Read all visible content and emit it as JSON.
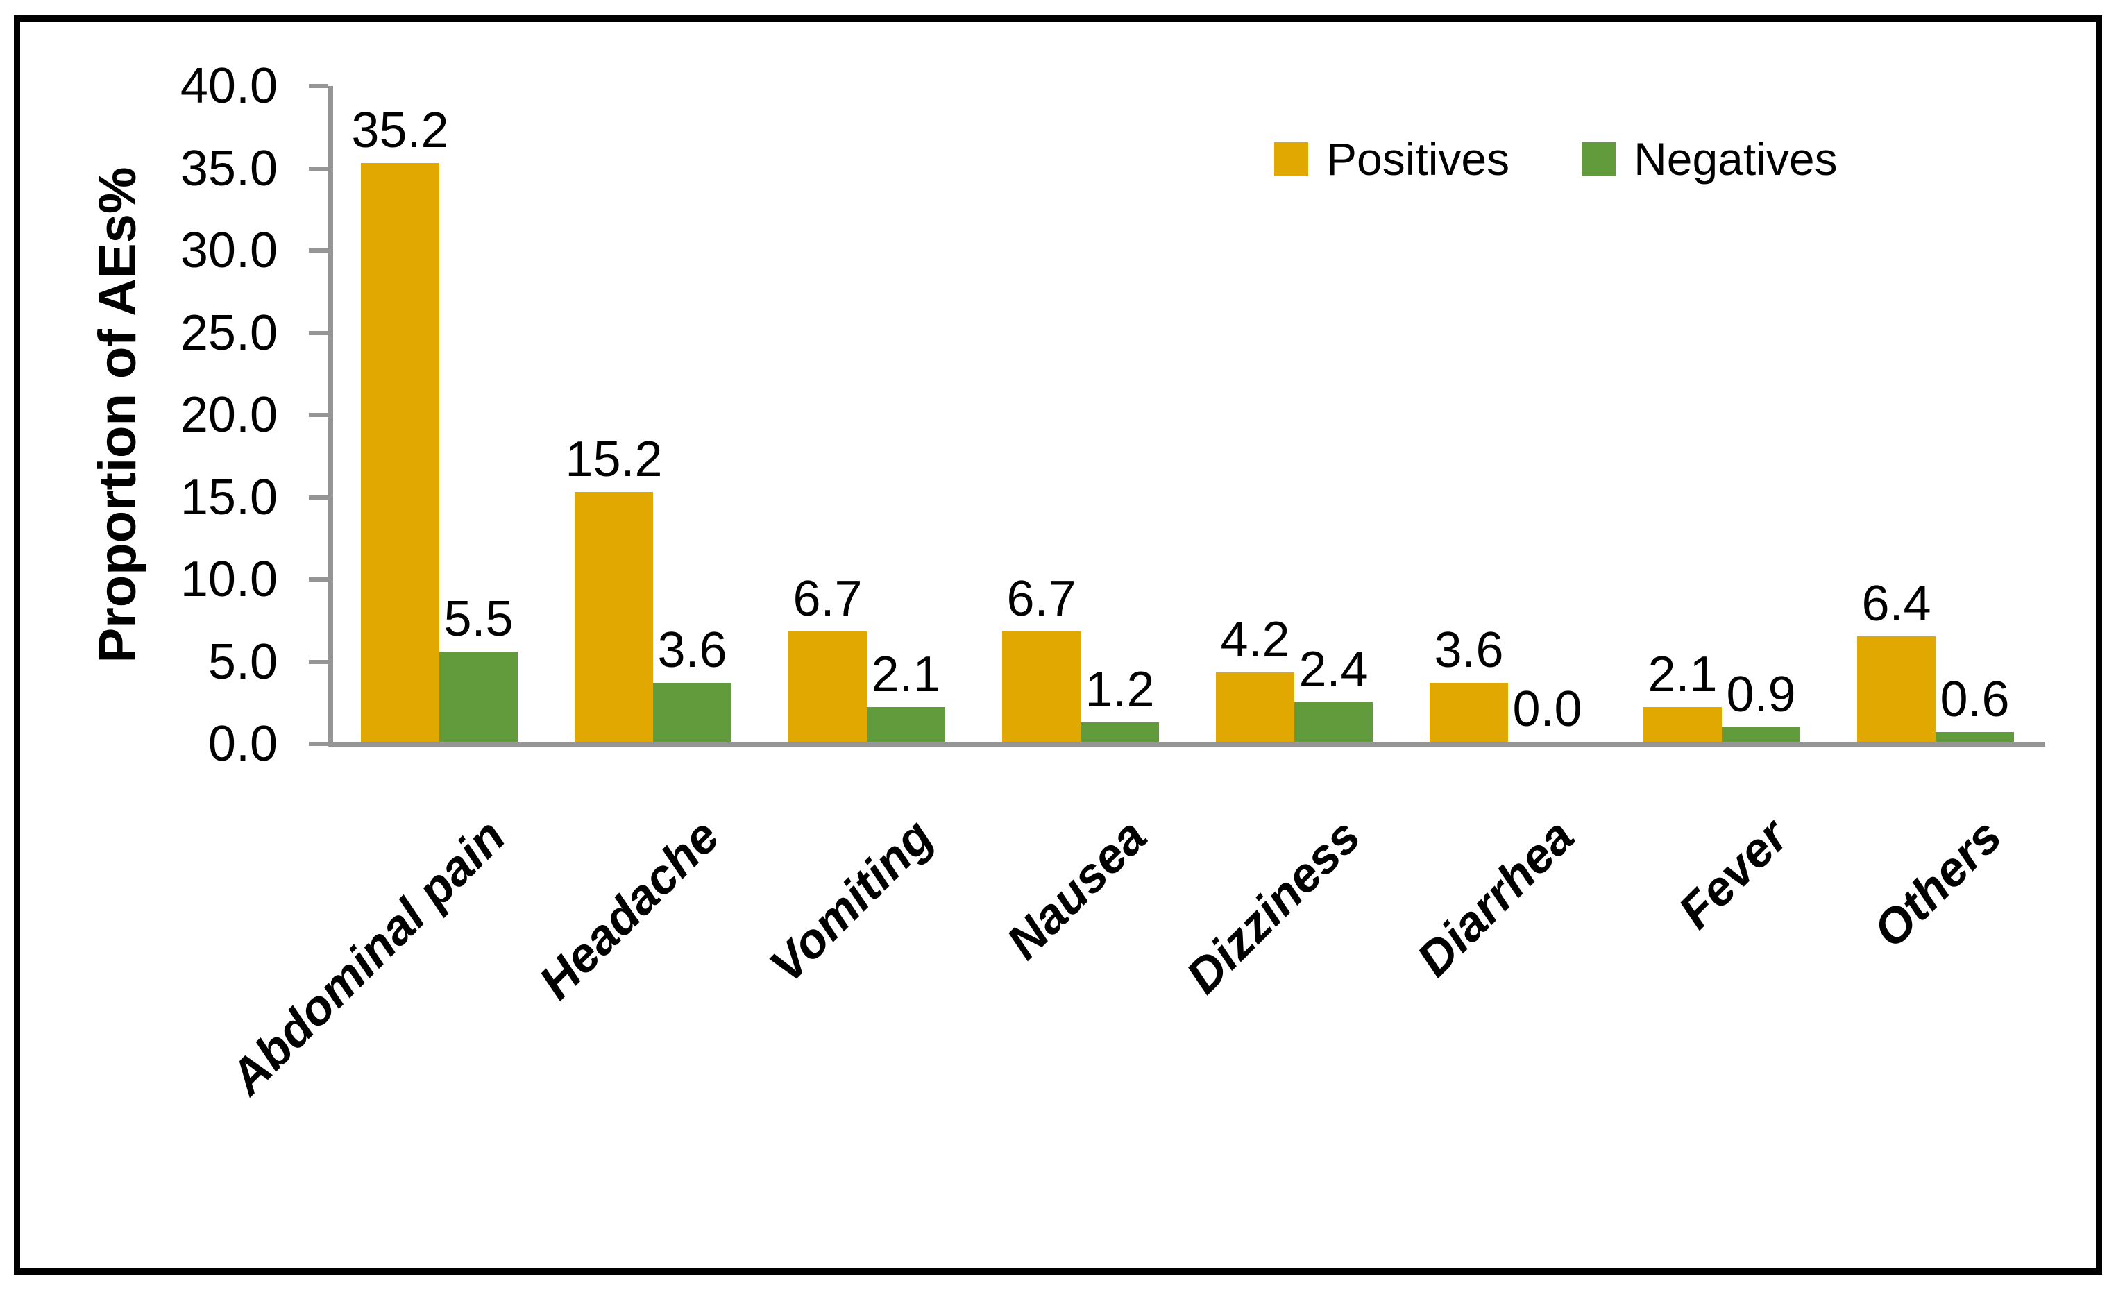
{
  "chart_data": {
    "type": "bar",
    "title": "",
    "xlabel": "",
    "ylabel": "Proportion of AEs%",
    "categories": [
      "Abdominal pain",
      "Headache",
      "Vomiting",
      "Nausea",
      "Dizziness",
      "Diarrhea",
      "Fever",
      "Others"
    ],
    "series": [
      {
        "name": "Positives",
        "color": "#E0A800",
        "values": [
          35.2,
          15.2,
          6.7,
          6.7,
          4.2,
          3.6,
          2.1,
          6.4
        ],
        "labels": [
          "35.2",
          "15.2",
          "6.7",
          "6.7",
          "4.2",
          "3.6",
          "2.1",
          "6.4"
        ]
      },
      {
        "name": "Negatives",
        "color": "#619B3C",
        "values": [
          5.5,
          3.6,
          2.1,
          1.2,
          2.4,
          0.0,
          0.9,
          0.6
        ],
        "labels": [
          "5.5",
          "3.6",
          "2.1",
          "1.2",
          "2.4",
          "0.0",
          "0.9",
          "0.6"
        ]
      }
    ],
    "ylim": [
      0,
      40
    ],
    "ytick_step": 5,
    "ytick_labels": [
      "0.0",
      "5.0",
      "10.0",
      "15.0",
      "20.0",
      "25.0",
      "30.0",
      "35.0",
      "40.0"
    ],
    "grid": false,
    "legend_position": "top-right",
    "axis_color": "#959595",
    "text_color": "#000000"
  }
}
